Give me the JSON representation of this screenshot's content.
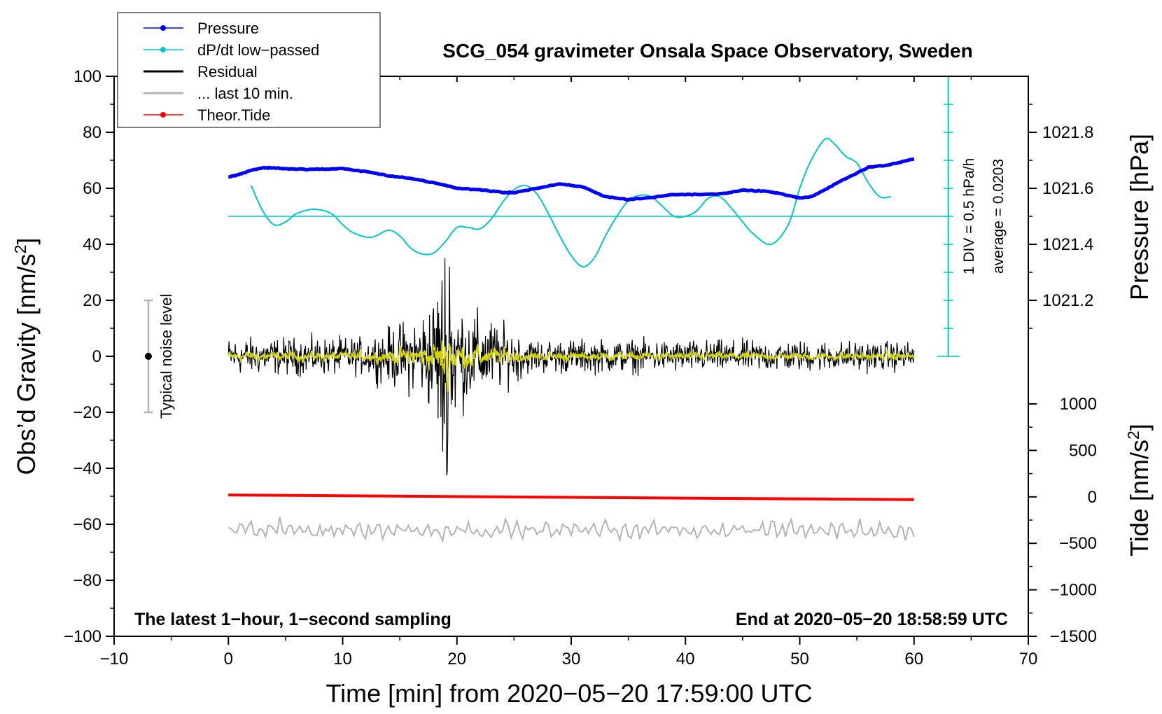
{
  "chart_data": {
    "type": "line",
    "title": "SCG_054 gravimeter Onsala Space Observatory, Sweden",
    "xlabel": "Time [min] from 2020−05−20 17:59:00 UTC",
    "ylabel_left": "Obs’d Gravity [nm/s²]",
    "ylabel_left_main": "Obs’d Gravity [nm/s",
    "ylabel_left_sup": "2",
    "ylabel_left_tail": "]",
    "ylabel_pressure": "Pressure [hPa]",
    "ylabel_tide": "Tide [nm/s²]",
    "ylabel_tide_main": "Tide [nm/s",
    "ylabel_tide_sup": "2",
    "ylabel_tide_tail": "]",
    "xlim": [
      -10,
      70
    ],
    "ylim": [
      -100,
      100
    ],
    "x_ticks": [
      -10,
      0,
      10,
      20,
      30,
      40,
      50,
      60,
      70
    ],
    "x_tick_labels": [
      "−10",
      "0",
      "10",
      "20",
      "30",
      "40",
      "50",
      "60",
      "70"
    ],
    "y_ticks": [
      100,
      80,
      60,
      40,
      20,
      0,
      -20,
      -40,
      -60,
      -80,
      -100
    ],
    "y_tick_labels": [
      "100",
      "80",
      "60",
      "40",
      "20",
      "0",
      "−20",
      "−40",
      "−60",
      "−80",
      "−100"
    ],
    "pressure_axis": {
      "gravity_y_for": [
        [
          1021.2,
          20
        ],
        [
          1021.8,
          80
        ]
      ],
      "tick_labels": [
        "1021.8",
        "1021.6",
        "1021.4",
        "1021.2"
      ],
      "tick_values": [
        1021.8,
        1021.6,
        1021.4,
        1021.2
      ]
    },
    "tide_axis": {
      "gravity_y_for": [
        [
          -1500,
          -100
        ],
        [
          1000,
          -17
        ]
      ],
      "tick_labels": [
        "1000",
        "500",
        "0",
        "−500",
        "−1000",
        "−1500"
      ],
      "tick_values": [
        1000,
        500,
        0,
        -500,
        -1000,
        -1500
      ]
    },
    "legend": {
      "position": "top-left",
      "entries": [
        {
          "label": "Pressure",
          "color": "#0000ff",
          "marker": true
        },
        {
          "label": "dP/dt low−passed",
          "color": "#00c8c8",
          "marker": true
        },
        {
          "label": "Residual",
          "color": "#000000",
          "marker": false
        },
        {
          "label": "... last 10 min.",
          "color": "#b4b4b4",
          "marker": false
        },
        {
          "label": "Theor.Tide",
          "color": "#ff0000",
          "marker": true
        }
      ]
    },
    "series": [
      {
        "name": "Pressure",
        "color": "#0000ff",
        "units": "gravity-axis equivalent",
        "x": [
          0,
          1,
          2,
          3,
          4,
          5,
          6,
          8,
          10,
          12,
          14,
          16,
          18,
          20,
          22,
          24,
          25,
          27,
          29,
          31,
          33,
          35,
          37,
          39,
          41,
          43,
          45,
          47,
          49,
          50,
          51,
          52,
          54,
          56,
          58,
          60
        ],
        "values": [
          64,
          65,
          66.5,
          67.3,
          67.3,
          67,
          66.8,
          66.8,
          67,
          66,
          64.5,
          63.5,
          62,
          60,
          59.5,
          58.5,
          58.5,
          60,
          61.5,
          60.5,
          57,
          56,
          56.7,
          57.8,
          57.8,
          58,
          59.3,
          59,
          57.5,
          56.5,
          57,
          59,
          63.5,
          67.5,
          68.5,
          70.5
        ]
      },
      {
        "name": "dP/dt low−passed",
        "color": "#00c8c8",
        "zero_line": 50,
        "x": [
          2,
          3,
          4,
          5,
          6,
          7.5,
          9,
          10,
          11,
          12.5,
          14,
          15,
          16,
          17,
          18,
          19,
          20,
          21,
          22,
          23,
          24,
          25,
          26,
          27,
          28,
          29,
          30,
          31,
          32,
          33,
          34,
          35,
          36,
          37,
          38,
          39,
          40,
          41,
          42,
          43,
          44,
          45,
          46,
          47.5,
          49,
          50,
          51,
          52.2,
          53,
          54,
          55,
          56,
          57,
          58
        ],
        "values": [
          61,
          52,
          47,
          48,
          51,
          52.5,
          51,
          47,
          44,
          42.5,
          45,
          43,
          38.5,
          36.5,
          37,
          41,
          46,
          46,
          45.5,
          49,
          55,
          59.5,
          61,
          58,
          51,
          43,
          36,
          32,
          35,
          43,
          50,
          55.5,
          57.5,
          57,
          53.5,
          50,
          50,
          52,
          56.5,
          57,
          53,
          48,
          43.5,
          40,
          47,
          60,
          70,
          77.5,
          76,
          71.5,
          69,
          62,
          57,
          57
        ]
      },
      {
        "name": "Residual",
        "color": "#000000",
        "x_range": [
          0,
          60
        ],
        "note": "1-second residual; ~±10 nm/s² noise, earthquake burst 17–21 min peaking +35 / −43 nm/s² near 19 min"
      },
      {
        "name": "Residual (smoothed)",
        "color": "#d2d200",
        "x_range": [
          0,
          60
        ]
      },
      {
        "name": "... last 10 min.",
        "color": "#b4b4b4",
        "offset": -62,
        "x_range": [
          0,
          60
        ]
      },
      {
        "name": "Theor.Tide",
        "color": "#ff0000",
        "units": "nm/s² (tide axis)",
        "x": [
          0,
          60
        ],
        "values": [
          20,
          -30
        ]
      }
    ],
    "noise_marker": {
      "x": -7,
      "y": 0,
      "range": [
        -20,
        20
      ],
      "label": "Typical noise level"
    },
    "scale_bar": {
      "x": 63,
      "y_range": [
        0,
        100
      ],
      "div_label": "1 DIV = 0.5 hPa/h",
      "avg_label": "average = 0.0203"
    },
    "footer_left": "The latest 1−hour, 1−second sampling",
    "footer_right": "End at 2020−05−20 18:58:59 UTC"
  }
}
